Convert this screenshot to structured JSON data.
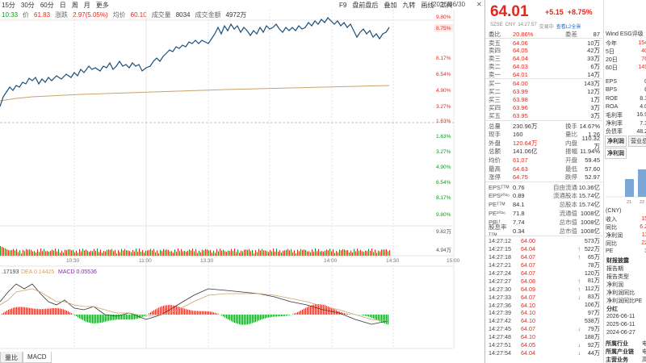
{
  "toolbar": {
    "left": [
      "15分",
      "30分",
      "60分",
      "日",
      "周",
      "月",
      "更多"
    ],
    "right": [
      "F9",
      "盘前盘后",
      "叠加",
      "九转",
      "画线",
      "工具"
    ],
    "date": "2026/06/30",
    "close": "✕"
  },
  "info": {
    "time": "10:33",
    "price_label": "价",
    "price": "61.83",
    "change_label": "涨跌",
    "change": "2.97(5.05%)",
    "avg_label": "均价",
    "avg": "60.10",
    "vol_label": "成交量",
    "vol": "8034",
    "amount_label": "成交金额",
    "amount": "4972万"
  },
  "chart": {
    "right_axis_top": [
      "9.80%",
      "8.75%",
      "8.17%",
      "6.54%",
      "4.90%",
      "3.27%",
      "1.63%",
      "0.00%"
    ],
    "right_axis_bottom": [
      "1.63%",
      "3.27%",
      "4.90%",
      "6.54%",
      "8.17%",
      "9.80%"
    ],
    "vol_axis": [
      "9.82万",
      "4.94万"
    ],
    "time_axis": [
      "10:30",
      "11:00",
      "13:30",
      "14:00",
      "14:30",
      "15:00"
    ],
    "macd_label": {
      "a": ".17193",
      "dea": "DEA 0.14425",
      "macd": "MACD 0.05536"
    },
    "colors": {
      "price": "#1b4f7a",
      "avg": "#c9a36a",
      "up": "#e0281e",
      "down": "#0a9b1a"
    }
  },
  "bottom_tabs": [
    "量比",
    "MACD"
  ],
  "quote": {
    "price": "64.01",
    "change": "+5.15",
    "change_pct": "+8.75%",
    "meta": [
      "SZSE",
      "CNY",
      "14:27:57",
      "交易中"
    ],
    "meta_link": "查看L2全景",
    "weibi": {
      "label": "委比",
      "value": "20.86%",
      "label2": "委差",
      "value2": "87"
    },
    "asks": [
      {
        "label": "卖五",
        "price": "64.06",
        "vol": "10万"
      },
      {
        "label": "卖四",
        "price": "64.05",
        "vol": "42万"
      },
      {
        "label": "卖三",
        "price": "64.04",
        "vol": "33万"
      },
      {
        "label": "卖二",
        "price": "64.03",
        "vol": "6万"
      },
      {
        "label": "卖一",
        "price": "64.01",
        "vol": "14万"
      }
    ],
    "bids": [
      {
        "label": "买一",
        "price": "64.00",
        "vol": "143万"
      },
      {
        "label": "买二",
        "price": "63.99",
        "vol": "12万"
      },
      {
        "label": "买三",
        "price": "63.98",
        "vol": "1万"
      },
      {
        "label": "买四",
        "price": "63.96",
        "vol": "3万"
      },
      {
        "label": "买五",
        "price": "63.95",
        "vol": "3万"
      }
    ],
    "stats1": [
      [
        "总量",
        "230.96万",
        "换手",
        "14.67%"
      ],
      [
        "现手",
        "160",
        "量比",
        "1.26"
      ],
      [
        "外盘",
        "120.64万",
        "内盘",
        "110.32万"
      ],
      [
        "总额",
        "141.06亿",
        "振幅",
        "11.94%"
      ],
      [
        "均价",
        "61.07",
        "开盘",
        "59.45"
      ],
      [
        "最高",
        "64.63",
        "最低",
        "57.60"
      ],
      [
        "涨停",
        "64.75",
        "跌停",
        "52.97"
      ]
    ],
    "stats2": [
      [
        "EPSᵀᵀᴹ",
        "0.76",
        "自由流通",
        "10.36亿"
      ],
      [
        "EPS²⁰²⁶",
        "0.89",
        "流通股本",
        "15.74亿"
      ],
      [
        "PEᵀᵀᴹ",
        "84.1",
        "总股本",
        "15.74亿"
      ],
      [
        "PE²⁰²⁶",
        "71.8",
        "流通值",
        "1008亿"
      ],
      [
        "PBᴸᶠ",
        "7.74",
        "总市值",
        "1008亿"
      ],
      [
        "股息率ᵀᵀᴹ",
        "0.34",
        "总市值",
        "1008亿"
      ]
    ],
    "ticks": [
      {
        "t": "14:27:12",
        "p": "64.00",
        "a": "",
        "v": "573万"
      },
      {
        "t": "14:27:15",
        "p": "64.04",
        "a": "↑",
        "v": "522万"
      },
      {
        "t": "14:27:18",
        "p": "64.07",
        "a": "↑",
        "v": "65万"
      },
      {
        "t": "14:27:21",
        "p": "64.07",
        "a": "",
        "v": "78万"
      },
      {
        "t": "14:27:24",
        "p": "64.07",
        "a": "",
        "v": "120万"
      },
      {
        "t": "14:27:27",
        "p": "64.08",
        "a": "↑",
        "v": "81万"
      },
      {
        "t": "14:27:30",
        "p": "64.09",
        "a": "↑",
        "v": "112万"
      },
      {
        "t": "14:27:33",
        "p": "64.07",
        "a": "↓",
        "v": "83万"
      },
      {
        "t": "14:27:36",
        "p": "64.10",
        "a": "",
        "v": "106万"
      },
      {
        "t": "14:27:39",
        "p": "64.10",
        "a": "",
        "v": "97万"
      },
      {
        "t": "14:27:42",
        "p": "64.10",
        "a": "",
        "v": "538万"
      },
      {
        "t": "14:27:45",
        "p": "64.07",
        "a": "↓",
        "v": "79万"
      },
      {
        "t": "14:27:48",
        "p": "64.10",
        "a": "",
        "v": "188万"
      },
      {
        "t": "14:27:51",
        "p": "64.05",
        "a": "↓",
        "v": "92万"
      },
      {
        "t": "14:27:54",
        "p": "64.04",
        "a": "↓",
        "v": "44万"
      }
    ]
  },
  "side": {
    "header": "Wind ESG评级",
    "rows": [
      {
        "l": "今年",
        "v": "154"
      },
      {
        "l": "5日",
        "v": "40"
      },
      {
        "l": "20日",
        "v": "76"
      },
      {
        "l": "60日",
        "v": "149"
      }
    ],
    "rows2": [
      {
        "l": "EPS",
        "v": "0"
      },
      {
        "l": "BPS",
        "v": "8"
      },
      {
        "l": "ROE",
        "v": "8.1"
      },
      {
        "l": "ROA",
        "v": "4.0"
      },
      {
        "l": "毛利率",
        "v": "16.9"
      },
      {
        "l": "净利率",
        "v": "7.3"
      },
      {
        "l": "负债率",
        "v": "48.2"
      }
    ],
    "tabs": [
      "净利润",
      "营业总收"
    ],
    "tabs2": [
      "净利润"
    ],
    "bar_axis": [
      "21",
      "22"
    ],
    "cny": "(CNY)",
    "rows3": [
      {
        "l": "收入",
        "v": "15"
      },
      {
        "l": "同比",
        "v": "6.2"
      },
      {
        "l": "净利润",
        "v": "11"
      },
      {
        "l": "同比",
        "v": "22"
      },
      {
        "l": "PE",
        "v": "3"
      }
    ],
    "links": [
      "财报披露",
      "报告期",
      "报告类型",
      "净利润",
      "净利润同比",
      "净利润同比PE"
    ],
    "fenhong": "分红",
    "dates": [
      "2026-06-11",
      "2025-06-11",
      "2024-06-27"
    ],
    "industry": [
      {
        "l": "所属行业",
        "v": "电"
      },
      {
        "l": "所属产业链",
        "v": "电"
      },
      {
        "l": "主营业务",
        "v": "高"
      }
    ]
  }
}
